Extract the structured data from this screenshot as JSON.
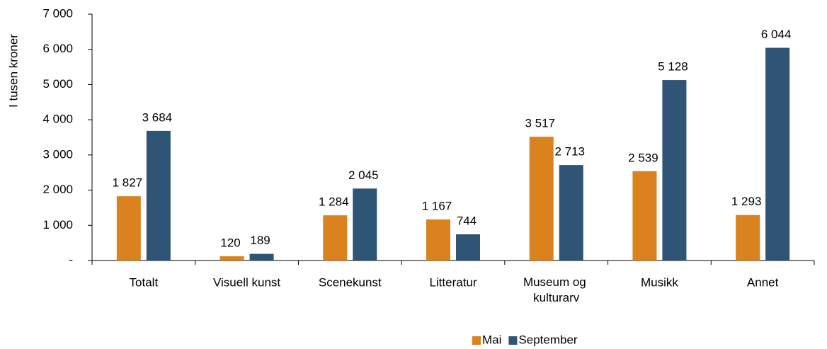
{
  "chart_data": {
    "type": "bar",
    "y_label": "I tusen kroner",
    "categories": [
      "Totalt",
      "Visuell kunst",
      "Scenekunst",
      "Litteratur",
      "Museum og kulturarv",
      "Musikk",
      "Annet"
    ],
    "series": [
      {
        "name": "Mai",
        "color": "#d9821e",
        "values": [
          1827,
          120,
          1284,
          1167,
          3517,
          2539,
          1293
        ],
        "value_labels": [
          "1 827",
          "120",
          "1 284",
          "1 167",
          "3 517",
          "2 539",
          "1 293"
        ]
      },
      {
        "name": "September",
        "color": "#2f5475",
        "values": [
          3684,
          189,
          2045,
          744,
          2713,
          5128,
          6044
        ],
        "value_labels": [
          "3 684",
          "189",
          "2 045",
          "744",
          "2 713",
          "5 128",
          "6 044"
        ]
      }
    ],
    "ylim": [
      0,
      7000
    ],
    "yticks": [
      {
        "value": 0,
        "label": "-"
      },
      {
        "value": 1000,
        "label": "1 000"
      },
      {
        "value": 2000,
        "label": "2 000"
      },
      {
        "value": 3000,
        "label": "3 000"
      },
      {
        "value": 4000,
        "label": "4 000"
      },
      {
        "value": 5000,
        "label": "5 000"
      },
      {
        "value": 6000,
        "label": "6 000"
      },
      {
        "value": 7000,
        "label": "7 000"
      }
    ],
    "legend": "bottom"
  }
}
